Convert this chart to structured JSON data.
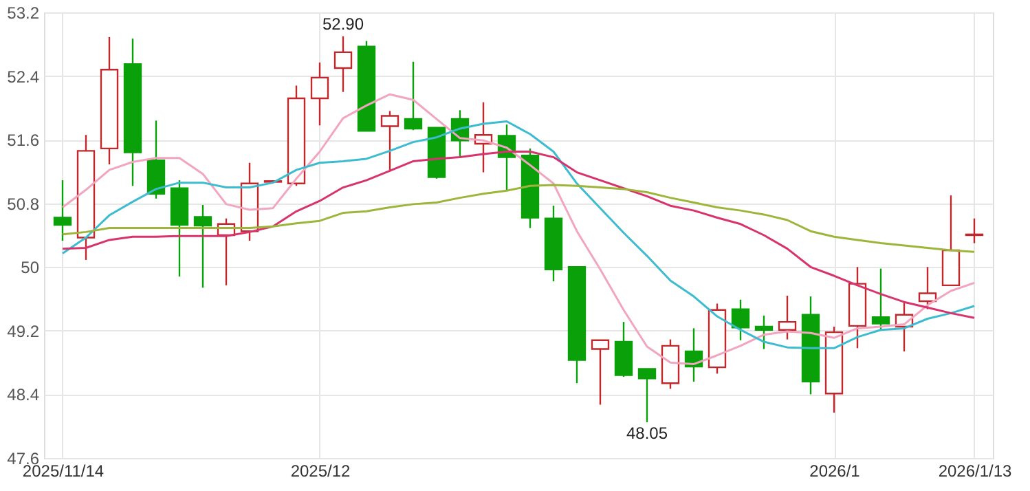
{
  "chart_data": {
    "type": "candlestick",
    "categories": [
      "2025/11/14",
      null,
      null,
      null,
      null,
      null,
      null,
      null,
      null,
      null,
      null,
      "2025/12",
      null,
      null,
      null,
      null,
      null,
      null,
      null,
      null,
      null,
      null,
      null,
      null,
      null,
      null,
      null,
      null,
      null,
      null,
      null,
      null,
      null,
      "2026/1",
      null,
      null,
      null,
      null,
      null,
      "2026/1/13"
    ],
    "ohlc": [
      [
        50.62,
        51.09,
        50.33,
        50.53
      ],
      [
        50.37,
        51.66,
        50.09,
        51.46
      ],
      [
        51.49,
        52.89,
        51.29,
        52.48
      ],
      [
        52.55,
        52.87,
        51.02,
        51.44
      ],
      [
        51.34,
        51.84,
        50.86,
        50.92
      ],
      [
        50.99,
        51.09,
        49.88,
        50.53
      ],
      [
        50.63,
        50.78,
        49.74,
        50.52
      ],
      [
        50.4,
        50.61,
        49.77,
        50.54
      ],
      [
        50.45,
        51.31,
        50.33,
        51.05
      ],
      [
        51.07,
        51.09,
        51.07,
        51.08
      ],
      [
        51.05,
        52.28,
        51.02,
        52.12
      ],
      [
        52.12,
        52.57,
        51.78,
        52.38
      ],
      [
        52.5,
        52.9,
        52.2,
        52.7
      ],
      [
        52.77,
        52.84,
        51.71,
        51.71
      ],
      [
        51.77,
        51.96,
        51.22,
        51.9
      ],
      [
        51.86,
        52.58,
        51.72,
        51.74
      ],
      [
        51.75,
        51.75,
        51.11,
        51.13
      ],
      [
        51.86,
        51.97,
        51.37,
        51.59
      ],
      [
        51.55,
        52.07,
        51.19,
        51.66
      ],
      [
        51.65,
        51.79,
        50.97,
        51.38
      ],
      [
        51.4,
        51.49,
        50.49,
        50.62
      ],
      [
        50.61,
        50.77,
        49.82,
        49.97
      ],
      [
        50.0,
        50.0,
        48.54,
        48.83
      ],
      [
        48.97,
        49.08,
        48.27,
        49.08
      ],
      [
        49.06,
        49.31,
        48.62,
        48.64
      ],
      [
        48.72,
        48.72,
        48.05,
        48.6
      ],
      [
        48.54,
        49.09,
        48.47,
        49.01
      ],
      [
        48.94,
        49.23,
        48.56,
        48.75
      ],
      [
        48.74,
        49.54,
        48.66,
        49.46
      ],
      [
        49.47,
        49.59,
        49.08,
        49.24
      ],
      [
        49.25,
        49.39,
        48.97,
        49.21
      ],
      [
        49.21,
        49.64,
        49.09,
        49.31
      ],
      [
        49.4,
        49.63,
        48.4,
        48.56
      ],
      [
        48.41,
        49.25,
        48.17,
        49.18
      ],
      [
        49.26,
        50.0,
        48.98,
        49.79
      ],
      [
        49.37,
        49.98,
        49.2,
        49.29
      ],
      [
        49.25,
        49.57,
        48.94,
        49.4
      ],
      [
        49.57,
        50.0,
        49.47,
        49.67
      ],
      [
        49.77,
        50.9,
        49.77,
        50.21
      ],
      [
        50.4,
        50.61,
        50.3,
        50.41
      ]
    ],
    "colors": [
      "#0aa00a",
      "#c0282d",
      "#c0282d",
      "#0aa00a",
      "#0aa00a",
      "#0aa00a",
      "#0aa00a",
      "#c0282d",
      "#c0282d",
      "#c0282d",
      "#c0282d",
      "#c0282d",
      "#c0282d",
      "#0aa00a",
      "#c0282d",
      "#0aa00a",
      "#0aa00a",
      "#0aa00a",
      "#c0282d",
      "#0aa00a",
      "#0aa00a",
      "#0aa00a",
      "#0aa00a",
      "#c0282d",
      "#0aa00a",
      "#0aa00a",
      "#c0282d",
      "#0aa00a",
      "#c0282d",
      "#0aa00a",
      "#0aa00a",
      "#c0282d",
      "#0aa00a",
      "#c0282d",
      "#c0282d",
      "#0aa00a",
      "#c0282d",
      "#c0282d",
      "#c0282d",
      "#c0282d"
    ],
    "series": [
      {
        "type": "line",
        "color": "#f2a5bf",
        "values": [
          50.75,
          50.97,
          51.22,
          51.32,
          51.37,
          51.37,
          51.17,
          50.79,
          50.72,
          50.74,
          51.11,
          51.45,
          51.87,
          52.03,
          52.17,
          52.1,
          51.86,
          51.62,
          51.59,
          51.5,
          51.28,
          51.05,
          50.45,
          49.97,
          49.46,
          49.0,
          48.8,
          48.78,
          48.89,
          49.01,
          49.15,
          49.19,
          49.17,
          49.11,
          49.23,
          49.25,
          49.28,
          49.52,
          49.7,
          49.8
        ]
      },
      {
        "type": "line",
        "color": "#3dbcd0",
        "values": [
          50.17,
          50.37,
          50.65,
          50.82,
          50.98,
          51.06,
          51.06,
          51.0,
          51.0,
          51.06,
          51.22,
          51.31,
          51.33,
          51.36,
          51.46,
          51.57,
          51.63,
          51.74,
          51.8,
          51.83,
          51.67,
          51.45,
          51.05,
          50.74,
          50.43,
          50.14,
          49.83,
          49.63,
          49.38,
          49.21,
          49.06,
          48.99,
          48.98,
          48.98,
          49.12,
          49.21,
          49.23,
          49.35,
          49.42,
          49.51
        ]
      },
      {
        "type": "line",
        "color": "#d7346e",
        "values": [
          50.23,
          50.24,
          50.34,
          50.38,
          50.38,
          50.39,
          50.39,
          50.39,
          50.44,
          50.51,
          50.7,
          50.83,
          51.0,
          51.09,
          51.21,
          51.33,
          51.36,
          51.38,
          51.42,
          51.45,
          51.45,
          51.38,
          51.19,
          51.09,
          50.99,
          50.89,
          50.77,
          50.71,
          50.62,
          50.54,
          50.4,
          50.23,
          50.0,
          49.89,
          49.77,
          49.66,
          49.56,
          49.49,
          49.42,
          49.36
        ]
      },
      {
        "type": "line",
        "color": "#9db53b",
        "values": [
          50.41,
          50.44,
          50.49,
          50.49,
          50.49,
          50.49,
          50.49,
          50.49,
          50.49,
          50.51,
          50.55,
          50.58,
          50.68,
          50.7,
          50.75,
          50.79,
          50.81,
          50.87,
          50.92,
          50.96,
          51.02,
          51.03,
          51.02,
          51.0,
          50.98,
          50.94,
          50.87,
          50.81,
          50.75,
          50.71,
          50.66,
          50.59,
          50.45,
          50.38,
          50.34,
          50.3,
          50.27,
          50.24,
          50.21,
          50.19
        ]
      }
    ],
    "ylim": [
      47.6,
      53.2
    ],
    "yticks": [
      47.6,
      48.4,
      49.2,
      50,
      50.8,
      51.6,
      52.4,
      53.2
    ],
    "grid": true,
    "annotations": [
      {
        "text": "52.90",
        "y": 52.9
      },
      {
        "text": "48.05",
        "y": 48.05
      }
    ]
  }
}
